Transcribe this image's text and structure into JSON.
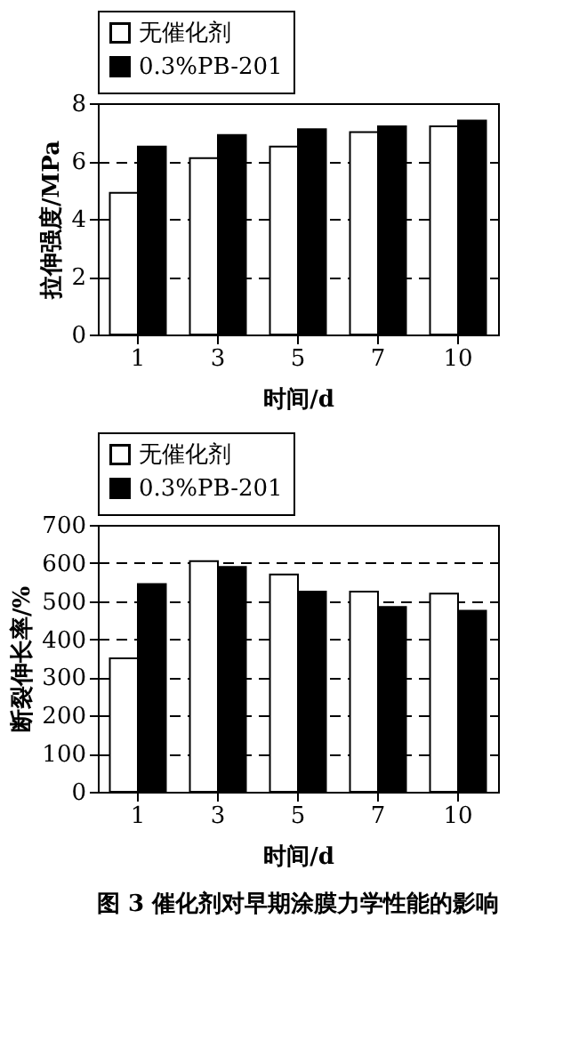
{
  "chart_data": [
    {
      "type": "bar",
      "categories": [
        "1",
        "3",
        "5",
        "7",
        "10"
      ],
      "xlabel": "时间/d",
      "ylabel": "拉伸强度/MPa",
      "ylim": [
        0,
        8
      ],
      "yticks": [
        0,
        2,
        4,
        6,
        8
      ],
      "grid": "y",
      "legend": "top",
      "series": [
        {
          "name": "无催化剂",
          "color": "#ffffff",
          "values": [
            4.9,
            6.1,
            6.5,
            7.0,
            7.2
          ]
        },
        {
          "name": "0.3%PB-201",
          "color": "#000000",
          "values": [
            6.5,
            6.9,
            7.1,
            7.2,
            7.4
          ]
        }
      ]
    },
    {
      "type": "bar",
      "categories": [
        "1",
        "3",
        "5",
        "7",
        "10"
      ],
      "xlabel": "时间/d",
      "ylabel": "断裂伸长率/%",
      "ylim": [
        0,
        700
      ],
      "yticks": [
        0,
        100,
        200,
        300,
        400,
        500,
        600,
        700
      ],
      "grid": "y",
      "legend": "top",
      "annotations": [
        "图 3  催化剂对早期涂膜力学性能的影响"
      ],
      "series": [
        {
          "name": "无催化剂",
          "color": "#ffffff",
          "values": [
            350,
            605,
            570,
            525,
            520
          ]
        },
        {
          "name": "0.3%PB-201",
          "color": "#000000",
          "values": [
            545,
            590,
            525,
            485,
            475
          ]
        }
      ]
    }
  ]
}
